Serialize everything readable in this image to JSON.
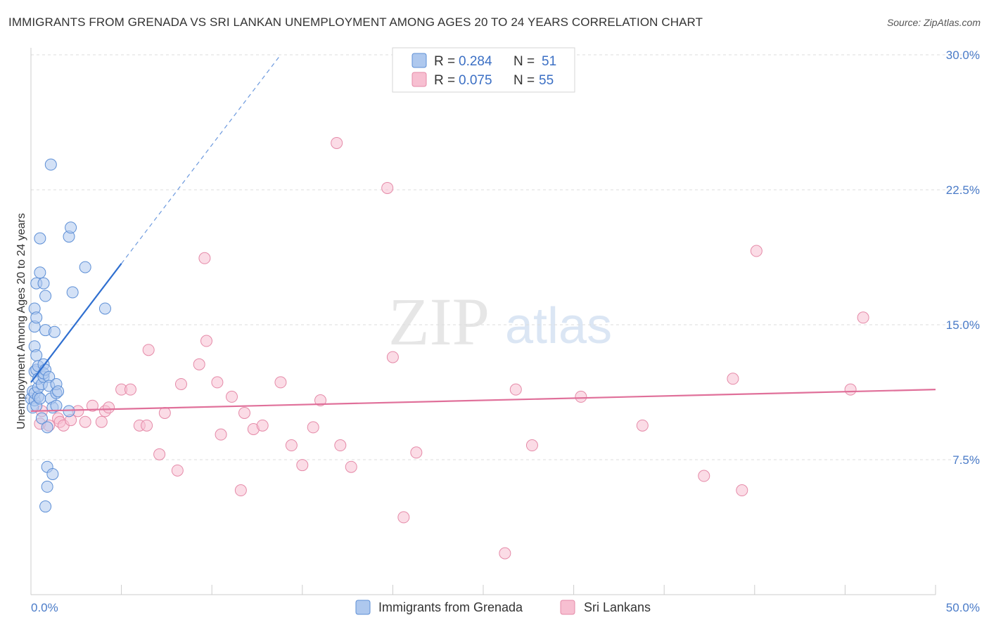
{
  "header": {
    "title": "IMMIGRANTS FROM GRENADA VS SRI LANKAN UNEMPLOYMENT AMONG AGES 20 TO 24 YEARS CORRELATION CHART",
    "source": "Source: ZipAtlas.com"
  },
  "watermark": {
    "zip": "ZIP",
    "atlas": "atlas"
  },
  "legend_top": {
    "rows": [
      {
        "r_label": "R = ",
        "r_value": "0.284",
        "n_label": "N = ",
        "n_value": "51"
      },
      {
        "r_label": "R = ",
        "r_value": "0.075",
        "n_label": "N = ",
        "n_value": "55"
      }
    ]
  },
  "colors": {
    "blue_fill": "#aec8ee",
    "blue_stroke": "#5d8fd6",
    "blue_line": "#2f6fd0",
    "pink_fill": "#f7bfd1",
    "pink_stroke": "#e58aa8",
    "pink_line": "#e0709a",
    "grid": "#dddddd",
    "tick_text": "#4a7bc8"
  },
  "chart_data": {
    "type": "scatter",
    "title": "IMMIGRANTS FROM GRENADA VS SRI LANKAN UNEMPLOYMENT AMONG AGES 20 TO 24 YEARS CORRELATION CHART",
    "xlabel": "",
    "ylabel": "Unemployment Among Ages 20 to 24 years",
    "xlim": [
      0,
      50
    ],
    "ylim": [
      0,
      30
    ],
    "x_tick_labels": [
      "0.0%",
      "50.0%"
    ],
    "y_ticks": [
      7.5,
      15.0,
      22.5,
      30.0
    ],
    "y_tick_labels": [
      "7.5%",
      "15.0%",
      "22.5%",
      "30.0%"
    ],
    "grid": true,
    "legend_position": "top-center",
    "series": [
      {
        "name": "Immigrants from Grenada",
        "R": 0.284,
        "N": 51,
        "trend": {
          "x0": 0.0,
          "y0": 11.8,
          "x1": 5.0,
          "y1": 18.4,
          "dash_to_x": 13.8,
          "dash_to_y": 30.0
        },
        "points": [
          [
            0.0,
            10.9
          ],
          [
            0.1,
            11.3
          ],
          [
            0.1,
            10.4
          ],
          [
            0.2,
            10.8
          ],
          [
            0.2,
            11.2
          ],
          [
            0.2,
            12.4
          ],
          [
            0.2,
            13.8
          ],
          [
            0.2,
            14.9
          ],
          [
            0.2,
            15.9
          ],
          [
            0.3,
            12.5
          ],
          [
            0.3,
            13.3
          ],
          [
            0.3,
            15.4
          ],
          [
            0.3,
            17.3
          ],
          [
            0.3,
            10.5
          ],
          [
            0.4,
            11.0
          ],
          [
            0.4,
            11.5
          ],
          [
            0.4,
            12.0
          ],
          [
            0.4,
            12.7
          ],
          [
            0.5,
            10.9
          ],
          [
            0.5,
            17.9
          ],
          [
            0.5,
            19.8
          ],
          [
            0.6,
            9.8
          ],
          [
            0.6,
            11.7
          ],
          [
            0.7,
            12.1
          ],
          [
            0.7,
            12.8
          ],
          [
            0.7,
            12.3
          ],
          [
            0.7,
            17.3
          ],
          [
            0.8,
            14.7
          ],
          [
            0.8,
            12.5
          ],
          [
            0.8,
            16.6
          ],
          [
            0.8,
            4.9
          ],
          [
            0.9,
            9.3
          ],
          [
            0.9,
            7.1
          ],
          [
            0.9,
            6.0
          ],
          [
            1.0,
            12.1
          ],
          [
            1.0,
            11.6
          ],
          [
            1.1,
            23.9
          ],
          [
            1.1,
            10.9
          ],
          [
            1.2,
            6.7
          ],
          [
            1.2,
            10.4
          ],
          [
            1.3,
            14.6
          ],
          [
            1.4,
            10.5
          ],
          [
            1.4,
            11.2
          ],
          [
            1.4,
            11.7
          ],
          [
            1.5,
            11.3
          ],
          [
            2.1,
            10.2
          ],
          [
            2.1,
            19.9
          ],
          [
            2.2,
            20.4
          ],
          [
            2.3,
            16.8
          ],
          [
            3.0,
            18.2
          ],
          [
            4.1,
            15.9
          ]
        ]
      },
      {
        "name": "Sri Lankans",
        "R": 0.075,
        "N": 55,
        "trend": {
          "x0": 0.0,
          "y0": 10.2,
          "x1": 50.0,
          "y1": 11.4
        },
        "points": [
          [
            0.5,
            9.5
          ],
          [
            0.6,
            10.2
          ],
          [
            1.0,
            9.4
          ],
          [
            1.5,
            9.8
          ],
          [
            1.6,
            9.6
          ],
          [
            1.8,
            9.4
          ],
          [
            2.2,
            9.7
          ],
          [
            2.6,
            10.2
          ],
          [
            3.0,
            9.6
          ],
          [
            3.4,
            10.5
          ],
          [
            3.9,
            9.6
          ],
          [
            4.1,
            10.2
          ],
          [
            4.3,
            10.4
          ],
          [
            5.0,
            11.4
          ],
          [
            5.5,
            11.4
          ],
          [
            6.0,
            9.4
          ],
          [
            6.4,
            9.4
          ],
          [
            6.5,
            13.6
          ],
          [
            7.1,
            7.8
          ],
          [
            7.4,
            10.1
          ],
          [
            8.1,
            6.9
          ],
          [
            8.3,
            11.7
          ],
          [
            9.3,
            12.8
          ],
          [
            9.6,
            18.7
          ],
          [
            9.7,
            14.1
          ],
          [
            10.3,
            11.8
          ],
          [
            10.5,
            8.9
          ],
          [
            11.1,
            11.0
          ],
          [
            11.6,
            5.8
          ],
          [
            11.8,
            10.1
          ],
          [
            12.3,
            9.2
          ],
          [
            12.8,
            9.4
          ],
          [
            13.8,
            11.8
          ],
          [
            14.4,
            8.3
          ],
          [
            15.0,
            7.2
          ],
          [
            15.6,
            9.3
          ],
          [
            16.0,
            10.8
          ],
          [
            16.9,
            25.1
          ],
          [
            17.1,
            8.3
          ],
          [
            17.7,
            7.1
          ],
          [
            19.7,
            22.6
          ],
          [
            20.0,
            13.2
          ],
          [
            20.6,
            4.3
          ],
          [
            21.3,
            7.9
          ],
          [
            26.2,
            2.3
          ],
          [
            26.8,
            11.4
          ],
          [
            27.7,
            8.3
          ],
          [
            30.4,
            11.0
          ],
          [
            33.8,
            9.4
          ],
          [
            37.2,
            6.6
          ],
          [
            38.8,
            12.0
          ],
          [
            39.3,
            5.8
          ],
          [
            40.1,
            19.1
          ],
          [
            45.3,
            11.4
          ],
          [
            46.0,
            15.4
          ]
        ]
      }
    ]
  }
}
